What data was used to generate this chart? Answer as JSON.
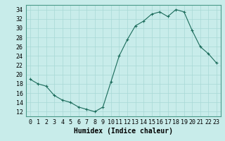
{
  "x": [
    0,
    1,
    2,
    3,
    4,
    5,
    6,
    7,
    8,
    9,
    10,
    11,
    12,
    13,
    14,
    15,
    16,
    17,
    18,
    19,
    20,
    21,
    22,
    23
  ],
  "y": [
    19,
    18,
    17.5,
    15.5,
    14.5,
    14,
    13,
    12.5,
    12,
    13,
    18.5,
    24,
    27.5,
    30.5,
    31.5,
    33,
    33.5,
    32.5,
    34,
    33.5,
    29.5,
    26,
    24.5,
    22.5
  ],
  "line_color": "#1a6b5a",
  "marker": "+",
  "marker_size": 3,
  "bg_color": "#c8ecea",
  "grid_color": "#a8d8d5",
  "xlabel": "Humidex (Indice chaleur)",
  "xlim": [
    -0.5,
    23.5
  ],
  "ylim": [
    11,
    35
  ],
  "yticks": [
    12,
    14,
    16,
    18,
    20,
    22,
    24,
    26,
    28,
    30,
    32,
    34
  ],
  "xticks": [
    0,
    1,
    2,
    3,
    4,
    5,
    6,
    7,
    8,
    9,
    10,
    11,
    12,
    13,
    14,
    15,
    16,
    17,
    18,
    19,
    20,
    21,
    22,
    23
  ],
  "label_fontsize": 7,
  "tick_fontsize": 6,
  "spine_color": "#4a9a8a"
}
